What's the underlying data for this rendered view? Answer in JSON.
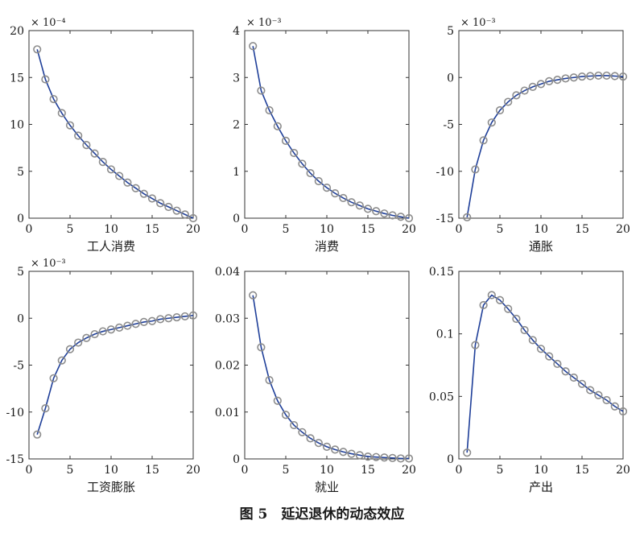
{
  "caption": "图 5　延迟退休的动态效应",
  "style": {
    "line_color": "#1f3f99",
    "marker_color": "#8c8c8c",
    "axis_color": "#333333"
  },
  "chart_data": [
    {
      "type": "line",
      "xlabel": "工人消费",
      "exponent": "× 10⁻⁴",
      "xlim": [
        0,
        20
      ],
      "ylim": [
        0,
        20
      ],
      "xticks": [
        0,
        5,
        10,
        15,
        20
      ],
      "yticks": [
        0,
        5,
        10,
        15,
        20
      ],
      "x": [
        1,
        2,
        3,
        4,
        5,
        6,
        7,
        8,
        9,
        10,
        11,
        12,
        13,
        14,
        15,
        16,
        17,
        18,
        19,
        20
      ],
      "values": [
        18.0,
        14.8,
        12.7,
        11.2,
        9.9,
        8.8,
        7.8,
        6.9,
        6.0,
        5.2,
        4.5,
        3.8,
        3.2,
        2.6,
        2.1,
        1.6,
        1.2,
        0.8,
        0.4,
        0.0
      ]
    },
    {
      "type": "line",
      "xlabel": "消费",
      "exponent": "× 10⁻³",
      "xlim": [
        0,
        20
      ],
      "ylim": [
        0,
        4
      ],
      "xticks": [
        0,
        5,
        10,
        15,
        20
      ],
      "yticks": [
        0,
        1,
        2,
        3,
        4
      ],
      "x": [
        1,
        2,
        3,
        4,
        5,
        6,
        7,
        8,
        9,
        10,
        11,
        12,
        13,
        14,
        15,
        16,
        17,
        18,
        19,
        20
      ],
      "values": [
        3.67,
        2.72,
        2.3,
        1.96,
        1.65,
        1.39,
        1.16,
        0.96,
        0.79,
        0.65,
        0.53,
        0.43,
        0.34,
        0.27,
        0.2,
        0.15,
        0.1,
        0.06,
        0.03,
        0.0
      ]
    },
    {
      "type": "line",
      "xlabel": "通胀",
      "exponent": "× 10⁻³",
      "xlim": [
        0,
        20
      ],
      "ylim": [
        -15,
        5
      ],
      "xticks": [
        0,
        5,
        10,
        15,
        20
      ],
      "yticks": [
        -15,
        -10,
        -5,
        0,
        5
      ],
      "x": [
        1,
        2,
        3,
        4,
        5,
        6,
        7,
        8,
        9,
        10,
        11,
        12,
        13,
        14,
        15,
        16,
        17,
        18,
        19,
        20
      ],
      "values": [
        -14.9,
        -9.8,
        -6.7,
        -4.8,
        -3.5,
        -2.6,
        -1.9,
        -1.4,
        -1.0,
        -0.7,
        -0.4,
        -0.25,
        -0.1,
        0.0,
        0.1,
        0.15,
        0.2,
        0.2,
        0.15,
        0.1
      ]
    },
    {
      "type": "line",
      "xlabel": "工资膨胀",
      "exponent": "× 10⁻³",
      "xlim": [
        0,
        20
      ],
      "ylim": [
        -15,
        5
      ],
      "xticks": [
        0,
        5,
        10,
        15,
        20
      ],
      "yticks": [
        -15,
        -10,
        -5,
        0,
        5
      ],
      "x": [
        1,
        2,
        3,
        4,
        5,
        6,
        7,
        8,
        9,
        10,
        11,
        12,
        13,
        14,
        15,
        16,
        17,
        18,
        19,
        20
      ],
      "values": [
        -12.4,
        -9.6,
        -6.4,
        -4.5,
        -3.3,
        -2.6,
        -2.1,
        -1.7,
        -1.4,
        -1.2,
        -1.0,
        -0.8,
        -0.6,
        -0.4,
        -0.3,
        -0.1,
        0.0,
        0.1,
        0.2,
        0.3
      ]
    },
    {
      "type": "line",
      "xlabel": "就业",
      "exponent": "",
      "xlim": [
        0,
        20
      ],
      "ylim": [
        0,
        0.04
      ],
      "xticks": [
        0,
        5,
        10,
        15,
        20
      ],
      "yticks": [
        0,
        0.01,
        0.02,
        0.03,
        0.04
      ],
      "x": [
        1,
        2,
        3,
        4,
        5,
        6,
        7,
        8,
        9,
        10,
        11,
        12,
        13,
        14,
        15,
        16,
        17,
        18,
        19,
        20
      ],
      "values": [
        0.0349,
        0.0238,
        0.0168,
        0.0124,
        0.0094,
        0.0072,
        0.0057,
        0.0044,
        0.0034,
        0.0026,
        0.002,
        0.0015,
        0.0011,
        0.0008,
        0.0005,
        0.0004,
        0.0003,
        0.0002,
        0.0001,
        0.0001
      ]
    },
    {
      "type": "line",
      "xlabel": "产出",
      "exponent": "",
      "xlim": [
        0,
        20
      ],
      "ylim": [
        0,
        0.15
      ],
      "xticks": [
        0,
        5,
        10,
        15,
        20
      ],
      "yticks": [
        0,
        0.05,
        0.1,
        0.15
      ],
      "x": [
        1,
        2,
        3,
        4,
        5,
        6,
        7,
        8,
        9,
        10,
        11,
        12,
        13,
        14,
        15,
        16,
        17,
        18,
        19,
        20
      ],
      "values": [
        0.005,
        0.091,
        0.123,
        0.131,
        0.127,
        0.12,
        0.112,
        0.103,
        0.095,
        0.088,
        0.082,
        0.076,
        0.07,
        0.065,
        0.06,
        0.055,
        0.051,
        0.047,
        0.042,
        0.038
      ]
    }
  ]
}
